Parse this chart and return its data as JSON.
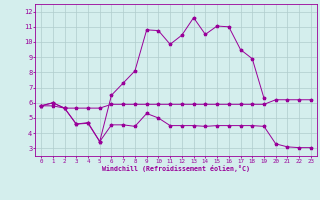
{
  "xlabel": "Windchill (Refroidissement éolien,°C)",
  "x": [
    0,
    1,
    2,
    3,
    4,
    5,
    6,
    7,
    8,
    9,
    10,
    11,
    12,
    13,
    14,
    15,
    16,
    17,
    18,
    19,
    20,
    21,
    22,
    23
  ],
  "line2": [
    5.8,
    6.0,
    5.65,
    4.6,
    4.65,
    3.45,
    4.55,
    4.55,
    4.45,
    5.3,
    5.0,
    4.5,
    4.5,
    4.5,
    4.45,
    4.5,
    4.5,
    4.5,
    4.5,
    4.45,
    3.3,
    3.1,
    3.05,
    3.05
  ],
  "line3": [
    5.8,
    5.8,
    5.65,
    5.65,
    5.65,
    5.65,
    5.9,
    5.9,
    5.9,
    5.9,
    5.9,
    5.9,
    5.9,
    5.9,
    5.9,
    5.9,
    5.9,
    5.9,
    5.9,
    5.9,
    6.2,
    6.2,
    6.2,
    6.2
  ],
  "line4": [
    5.8,
    6.0,
    5.65,
    4.6,
    4.7,
    3.45,
    6.5,
    7.3,
    8.1,
    10.8,
    10.75,
    9.85,
    10.45,
    11.6,
    10.5,
    11.05,
    11.0,
    9.5,
    8.9,
    6.3,
    null,
    null,
    null,
    null
  ],
  "line_color": "#990099",
  "bg_color": "#d4eeed",
  "grid_color": "#b0cccc",
  "xlim": [
    -0.5,
    23.5
  ],
  "ylim": [
    2.5,
    12.5
  ],
  "yticks": [
    3,
    4,
    5,
    6,
    7,
    8,
    9,
    10,
    11,
    12
  ],
  "xticks": [
    0,
    1,
    2,
    3,
    4,
    5,
    6,
    7,
    8,
    9,
    10,
    11,
    12,
    13,
    14,
    15,
    16,
    17,
    18,
    19,
    20,
    21,
    22,
    23
  ]
}
